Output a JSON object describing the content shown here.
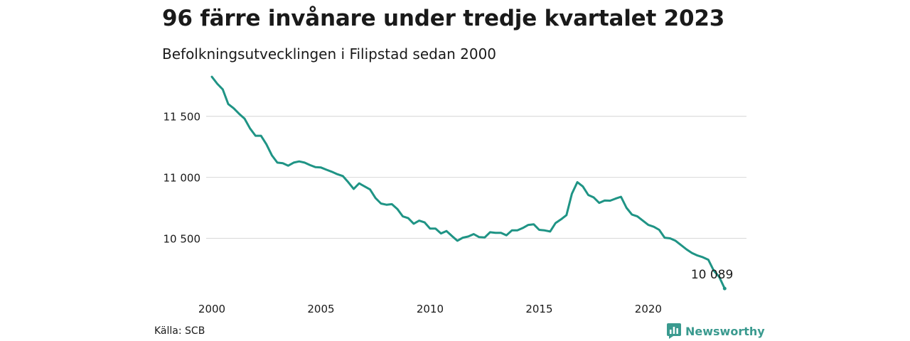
{
  "title": "96 färre invånare under tredje kvartalet 2023",
  "subtitle": "Befolkningsutvecklingen i Filipstad sedan 2000",
  "source": "Källa: SCB",
  "brand": {
    "name": "Newsworthy",
    "icon": "bar-chart-logo-icon",
    "color": "#3a9a8f"
  },
  "colors": {
    "line": "#1f9485",
    "grid": "#dddddd"
  },
  "chart_data": {
    "type": "line",
    "x_unit": "year (quarterly)",
    "y_ticks": [
      {
        "value": 10500,
        "label": "10 500"
      },
      {
        "value": 11000,
        "label": "11 000"
      },
      {
        "value": 11500,
        "label": "11 500"
      }
    ],
    "x_ticks": [
      {
        "value": 2000,
        "label": "2000"
      },
      {
        "value": 2005,
        "label": "2005"
      },
      {
        "value": 2010,
        "label": "2010"
      },
      {
        "value": 2015,
        "label": "2015"
      },
      {
        "value": 2020,
        "label": "2020"
      }
    ],
    "xlim": [
      2000,
      2024.5
    ],
    "ylim": [
      10020,
      11870
    ],
    "grid": true,
    "end_label": "10 089",
    "series": [
      {
        "x": [
          2000.0,
          2000.25,
          2000.5,
          2000.75,
          2001.0,
          2001.25,
          2001.5,
          2001.75,
          2002.0,
          2002.25,
          2002.5,
          2002.75,
          2003.0,
          2003.25,
          2003.5,
          2003.75,
          2004.0,
          2004.25,
          2004.5,
          2004.75,
          2005.0,
          2005.25,
          2005.5,
          2005.75,
          2006.0,
          2006.25,
          2006.5,
          2006.75,
          2007.0,
          2007.25,
          2007.5,
          2007.75,
          2008.0,
          2008.25,
          2008.5,
          2008.75,
          2009.0,
          2009.25,
          2009.5,
          2009.75,
          2010.0,
          2010.25,
          2010.5,
          2010.75,
          2011.0,
          2011.25,
          2011.5,
          2011.75,
          2012.0,
          2012.25,
          2012.5,
          2012.75,
          2013.0,
          2013.25,
          2013.5,
          2013.75,
          2014.0,
          2014.25,
          2014.5,
          2014.75,
          2015.0,
          2015.25,
          2015.5,
          2015.75,
          2016.0,
          2016.25,
          2016.5,
          2016.75,
          2017.0,
          2017.25,
          2017.5,
          2017.75,
          2018.0,
          2018.25,
          2018.5,
          2018.75,
          2019.0,
          2019.25,
          2019.5,
          2019.75,
          2020.0,
          2020.25,
          2020.5,
          2020.75,
          2021.0,
          2021.25,
          2021.5,
          2021.75,
          2022.0,
          2022.25,
          2022.5,
          2022.75,
          2023.0,
          2023.25,
          2023.5
        ],
        "y": [
          11823,
          11765,
          11720,
          11600,
          11565,
          11520,
          11480,
          11400,
          11340,
          11340,
          11270,
          11180,
          11120,
          11115,
          11095,
          11120,
          11130,
          11120,
          11100,
          11083,
          11080,
          11062,
          11045,
          11025,
          11010,
          10960,
          10905,
          10950,
          10925,
          10900,
          10830,
          10785,
          10775,
          10780,
          10740,
          10680,
          10665,
          10620,
          10645,
          10630,
          10580,
          10580,
          10540,
          10560,
          10520,
          10480,
          10505,
          10515,
          10535,
          10510,
          10507,
          10550,
          10545,
          10545,
          10525,
          10565,
          10565,
          10585,
          10610,
          10615,
          10570,
          10565,
          10556,
          10625,
          10655,
          10690,
          10865,
          10960,
          10925,
          10855,
          10835,
          10790,
          10810,
          10808,
          10825,
          10840,
          10750,
          10695,
          10680,
          10645,
          10610,
          10595,
          10570,
          10505,
          10500,
          10480,
          10445,
          10410,
          10380,
          10360,
          10345,
          10325,
          10235,
          10185,
          10089
        ]
      }
    ]
  }
}
